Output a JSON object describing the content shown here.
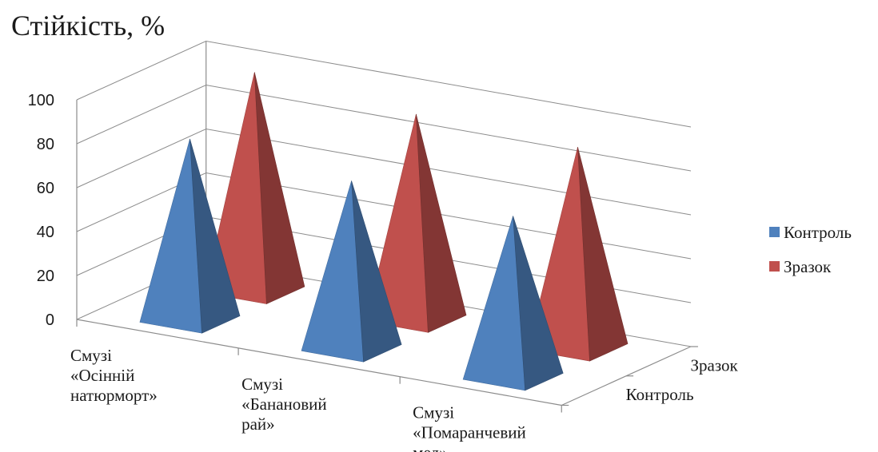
{
  "chart_data": {
    "type": "bar",
    "subtype": "3d-pyramid",
    "title": "Стійкість, %",
    "categories": [
      [
        "Смузі",
        "«Осінній",
        "натюрморт»"
      ],
      [
        "Смузі",
        "«Банановий",
        "рай»"
      ],
      [
        "Смузі",
        "«Помаранчевий",
        "мед»"
      ]
    ],
    "series": [
      {
        "name": "Контроль",
        "color": "#4f81bd",
        "values": [
          82,
          76,
          73
        ]
      },
      {
        "name": "Зразок",
        "color": "#c0504d",
        "values": [
          99,
          93,
          91
        ]
      }
    ],
    "depth_labels": [
      "Контроль",
      "Зразок"
    ],
    "yticks": [
      "0",
      "20",
      "40",
      "60",
      "80",
      "100"
    ],
    "ylim": [
      0,
      100
    ],
    "grid": true,
    "legend_position": "right"
  }
}
